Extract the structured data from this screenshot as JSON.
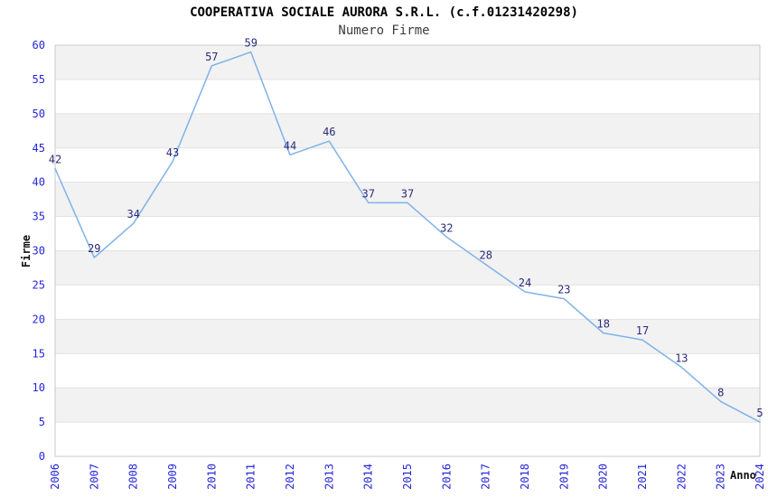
{
  "chart_data": {
    "type": "line",
    "title": "COOPERATIVA SOCIALE AURORA S.R.L. (c.f.01231420298)",
    "subtitle": "Numero Firme",
    "xlabel": "Anno",
    "ylabel": "Firme",
    "categories": [
      "2006",
      "2007",
      "2008",
      "2009",
      "2010",
      "2011",
      "2012",
      "2013",
      "2014",
      "2015",
      "2016",
      "2017",
      "2018",
      "2019",
      "2020",
      "2021",
      "2022",
      "2023",
      "2024"
    ],
    "values": [
      42,
      29,
      34,
      43,
      57,
      59,
      44,
      46,
      37,
      37,
      32,
      28,
      24,
      23,
      18,
      17,
      13,
      8,
      5
    ],
    "ylim": [
      0,
      60
    ],
    "ytick_step": 5,
    "yticks": [
      0,
      5,
      10,
      15,
      20,
      25,
      30,
      35,
      40,
      45,
      50,
      55,
      60
    ],
    "grid": "horizontal-bands-alternating",
    "legend": "none",
    "point_labels_visible": true,
    "colors": {
      "line": "#7FB2E8",
      "tick_labels": "#2626D9",
      "data_labels": "#2B2B7D",
      "band": "#F2F2F2",
      "gridline": "#E2E2E2",
      "border": "#C9C9C9",
      "title": "#000000",
      "subtitle": "#3D3D3D",
      "axis_label": "#111111",
      "background": "#FFFFFF"
    }
  }
}
